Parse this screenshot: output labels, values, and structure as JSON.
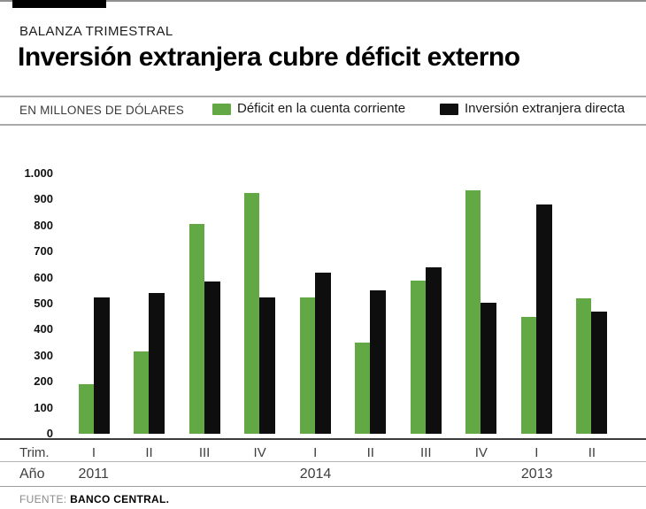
{
  "header": {
    "kicker": "BALANZA TRIMESTRAL",
    "title": "Inversión extranjera cubre déficit externo"
  },
  "legend": {
    "units_label": "EN MILLONES DE DÓLARES",
    "series": [
      {
        "label": "Déficit en la cuenta corriente",
        "color": "#62a945"
      },
      {
        "label": "Inversión extranjera directa",
        "color": "#0e0e0e"
      }
    ]
  },
  "chart_data": {
    "type": "bar",
    "title": "Inversión extranjera cubre déficit externo",
    "subtitle": "BALANZA TRIMESTRAL",
    "units": "EN MILLONES DE DÓLARES",
    "categories": [
      "I",
      "II",
      "III",
      "IV",
      "I",
      "II",
      "III",
      "IV",
      "I",
      "II"
    ],
    "year_groups": [
      {
        "label": "2011",
        "start_index": 0
      },
      {
        "label": "2014",
        "start_index": 4
      },
      {
        "label": "2013",
        "start_index": 8
      }
    ],
    "series": [
      {
        "name": "Déficit en la cuenta corriente",
        "color": "#62a945",
        "values": [
          190,
          315,
          805,
          925,
          525,
          350,
          590,
          935,
          450,
          520
        ]
      },
      {
        "name": "Inversión extranjera directa",
        "color": "#0e0e0e",
        "values": [
          525,
          540,
          585,
          525,
          620,
          550,
          640,
          505,
          880,
          470
        ]
      }
    ],
    "ylim": [
      0,
      1000
    ],
    "yticks": [
      "1.000",
      "900",
      "800",
      "700",
      "600",
      "500",
      "400",
      "300",
      "200",
      "100",
      "0"
    ],
    "grid": false,
    "legend_position": "top"
  },
  "axis": {
    "trim_label": "Trim.",
    "year_label": "Año"
  },
  "footer": {
    "source_label": "FUENTE:",
    "source_value": "BANCO CENTRAL."
  }
}
